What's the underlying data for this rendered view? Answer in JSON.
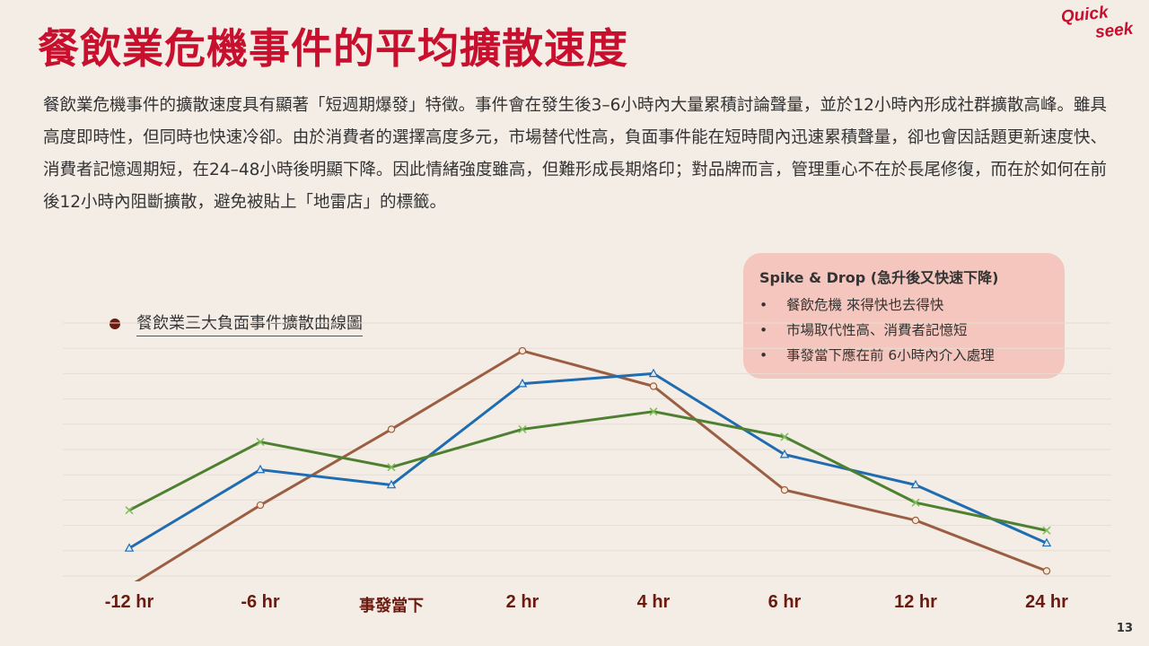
{
  "title": "餐飲業危機事件的平均擴散速度",
  "brand": {
    "logo_top": "Quick",
    "logo_bottom": "seek",
    "color": "#c8102e"
  },
  "description": "餐飲業危機事件的擴散速度具有顯著「短週期爆發」特徵。事件會在發生後3–6小時內大量累積討論聲量，並於12小時內形成社群擴散高峰。雖具高度即時性，但同時也快速冷卻。由於消費者的選擇高度多元，市場替代性高，負面事件能在短時間內迅速累積聲量，卻也會因話題更新速度快、消費者記憶週期短，在24–48小時後明顯下降。因此情緒強度雖高，但難形成長期烙印；對品牌而言，管理重心不在於長尾修復，而在於如何在前後12小時內阻斷擴散，避免被貼上「地雷店」的標籤。",
  "callout": {
    "title": "Spike & Drop (急升後又快速下降)",
    "bullet_char": "•",
    "items": [
      "餐飲危機 來得快也去得快",
      "市場取代性高、消費者記憶短",
      "事發當下應在前 6小時內介入處理"
    ]
  },
  "page_number": "13",
  "chart_data": {
    "type": "line",
    "legend": "餐飲業三大負面事件擴散曲線圖",
    "legend_placement": "top-left",
    "categories": [
      "-12 hr",
      "-6 hr",
      "事發當下",
      "2 hr",
      "4 hr",
      "6 hr",
      "12 hr",
      "24 hr"
    ],
    "ylim": [
      0,
      100
    ],
    "grid": true,
    "series": [
      {
        "color": "#9b5e42",
        "marker": "circle",
        "values": [
          -4,
          28,
          58,
          89,
          75,
          34,
          22,
          2
        ]
      },
      {
        "color": "#1f6cb0",
        "marker": "triangle",
        "values": [
          11,
          42,
          36,
          76,
          80,
          48,
          36,
          13
        ]
      },
      {
        "color": "#4d8030",
        "marker": "x",
        "values": [
          26,
          53,
          43,
          58,
          65,
          55,
          29,
          18
        ]
      }
    ]
  }
}
